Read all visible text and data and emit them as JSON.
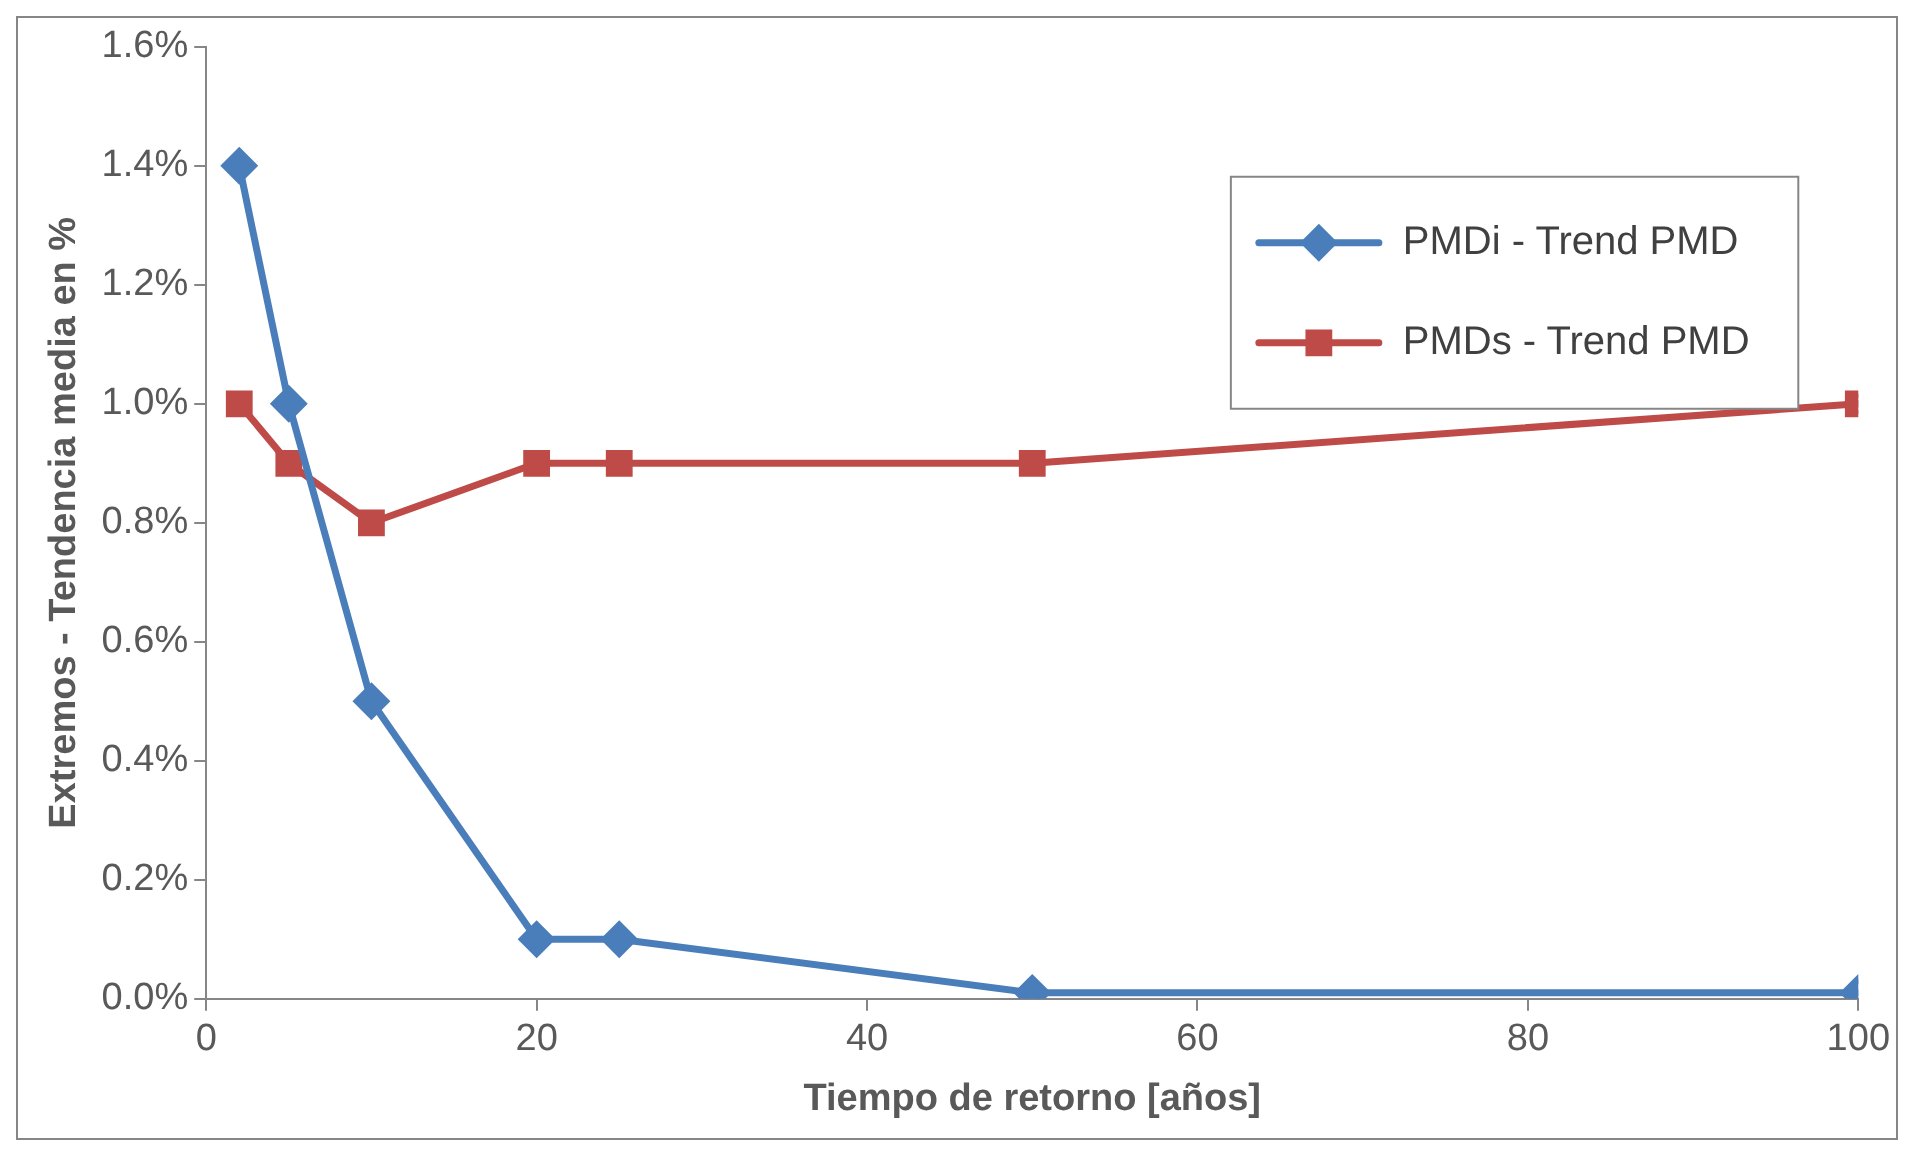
{
  "chart_data": {
    "type": "line",
    "xlabel": "Tiempo de retorno [años]",
    "ylabel": "Extremos - Tendencia media en %",
    "x": [
      2,
      5,
      10,
      20,
      25,
      50,
      100
    ],
    "series": [
      {
        "name": "PMDi - Trend PMD",
        "color": "#4a7ebb",
        "marker": "diamond",
        "values": [
          1.4,
          1.0,
          0.5,
          0.1,
          0.1,
          0.01,
          0.01
        ]
      },
      {
        "name": "PMDs - Trend PMD",
        "color": "#be4b48",
        "marker": "square",
        "values": [
          1.0,
          0.9,
          0.8,
          0.9,
          0.9,
          0.9,
          1.0
        ]
      }
    ],
    "xlim": [
      0,
      100
    ],
    "xticks": [
      0,
      20,
      40,
      60,
      80,
      100
    ],
    "ylim": [
      0,
      1.6
    ],
    "yticks": [
      {
        "value": 0,
        "label": "0.0%"
      },
      {
        "value": 0.2,
        "label": "0.2%"
      },
      {
        "value": 0.4,
        "label": "0.4%"
      },
      {
        "value": 0.6,
        "label": "0.6%"
      },
      {
        "value": 0.8,
        "label": "0.8%"
      },
      {
        "value": 1.0,
        "label": "1.0%"
      },
      {
        "value": 1.2,
        "label": "1.2%"
      },
      {
        "value": 1.4,
        "label": "1.4%"
      },
      {
        "value": 1.6,
        "label": "1.6%"
      }
    ],
    "grid": false,
    "legend": "top right",
    "line_style": "solid"
  }
}
